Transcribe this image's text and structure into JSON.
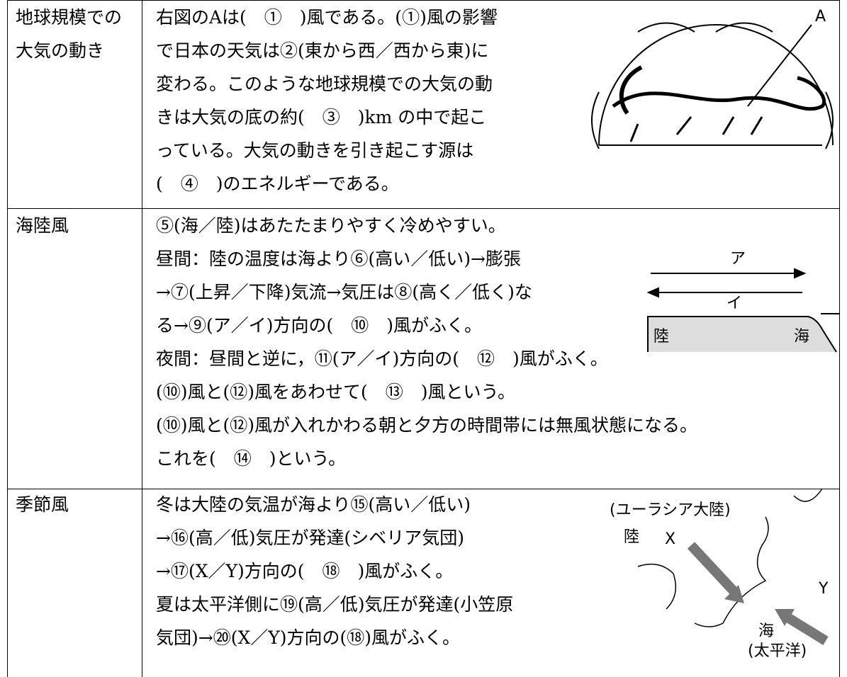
{
  "rows": [
    {
      "label": [
        "地球規模での",
        "大気の動き"
      ],
      "lines": [
        "右図のAは(　①　)風である。(①)風の影響",
        "で日本の天気は②(東から西／西から東)に",
        "変わる。このような地球規模での大気の動",
        "きは大気の底の約(　③　)km の中で起こ",
        "っている。大気の動きを引き起こす源は",
        "(　④　)のエネルギーである。"
      ],
      "figure_labels": [
        "A"
      ]
    },
    {
      "label": [
        "海陸風"
      ],
      "lines": [
        "⑤(海／陸)はあたたまりやすく冷めやすい。",
        "昼間：陸の温度は海より⑥(高い／低い)→膨張",
        "→⑦(上昇／下降)気流→気圧は⑧(高く／低く)な",
        "る→⑨(ア／イ)方向の(　⑩　)風がふく。",
        "夜間：昼間と逆に，⑪(ア／イ)方向の(　⑫　)風がふく。",
        "(⑩)風と(⑫)風をあわせて(　⑬　)風という。",
        "(⑩)風と(⑫)風が入れかわる朝と夕方の時間帯には無風状態になる。",
        "これを(　⑭　)という。"
      ],
      "figure_labels": [
        "ア",
        "イ",
        "陸",
        "海"
      ]
    },
    {
      "label": [
        "季節風"
      ],
      "lines": [
        "冬は大陸の気温が海より⑮(高い／低い)",
        "→⑯(高／低)気圧が発達(シベリア気団)",
        "→⑰(X／Y)方向の(　⑱　)風がふく。",
        "夏は太平洋側に⑲(高／低)気圧が発達(小笠原",
        "気団)→⑳(X／Y)方向の(⑱)風がふく。"
      ],
      "figure_labels": [
        "(ユーラシア大陸)",
        "陸",
        "X",
        "Y",
        "海",
        "(太平洋)"
      ]
    }
  ]
}
